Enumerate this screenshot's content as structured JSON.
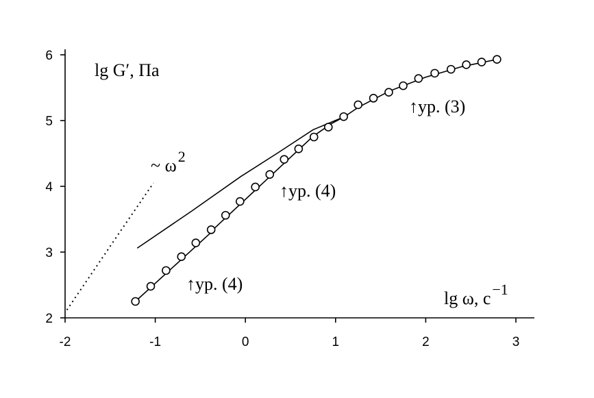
{
  "chart_data": {
    "type": "line",
    "xlim": [
      -2,
      3
    ],
    "ylim": [
      2,
      6
    ],
    "x_ticks": [
      "-2",
      "-1",
      "0",
      "1",
      "2",
      "3"
    ],
    "y_ticks": [
      "2",
      "3",
      "4",
      "5",
      "6"
    ],
    "xlabel": {
      "main": "lg ω, c",
      "sup": "−1"
    },
    "ylabel": "lg G′, Па",
    "grid": false,
    "legend": "none",
    "series": [
      {
        "kind": "markers",
        "x": [
          -1.22,
          -1.05,
          -0.88,
          -0.71,
          -0.55,
          -0.38,
          -0.22,
          -0.06,
          0.11,
          0.27,
          0.43,
          0.59,
          0.76,
          0.92,
          1.09,
          1.25,
          1.42,
          1.59,
          1.75,
          1.92,
          2.1,
          2.28,
          2.45,
          2.62,
          2.79
        ],
        "y": [
          2.25,
          2.48,
          2.72,
          2.93,
          3.14,
          3.34,
          3.56,
          3.77,
          3.99,
          4.18,
          4.41,
          4.57,
          4.75,
          4.9,
          5.06,
          5.24,
          5.34,
          5.43,
          5.53,
          5.64,
          5.72,
          5.78,
          5.85,
          5.89,
          5.93
        ]
      },
      {
        "kind": "line",
        "x": [
          -1.22,
          -0.38,
          -0.33,
          0.75,
          0.95,
          1.1,
          1.25,
          1.6,
          2.0,
          2.4,
          2.79
        ],
        "y": [
          2.25,
          3.3,
          3.38,
          4.76,
          4.95,
          5.06,
          5.2,
          5.45,
          5.66,
          5.82,
          5.93
        ]
      },
      {
        "kind": "line",
        "x": [
          -1.2,
          -0.6,
          -0.05,
          0.35,
          0.75,
          1.1
        ],
        "y": [
          3.06,
          3.62,
          4.15,
          4.5,
          4.86,
          5.06
        ]
      },
      {
        "kind": "dotted",
        "x": [
          -1.98,
          -1.42,
          -1.02
        ],
        "y": [
          2.12,
          3.25,
          4.05
        ]
      }
    ],
    "annotations": [
      {
        "text": "~ ω",
        "sup": "2",
        "x": -1.05,
        "y": 4.3
      },
      {
        "text": "↑ур. (4)",
        "x": 0.38,
        "y": 3.9
      },
      {
        "text": "↑ур. (4)",
        "x": -0.65,
        "y": 2.5
      },
      {
        "text": "↑ур. (3)",
        "x": 1.82,
        "y": 5.1
      }
    ]
  }
}
